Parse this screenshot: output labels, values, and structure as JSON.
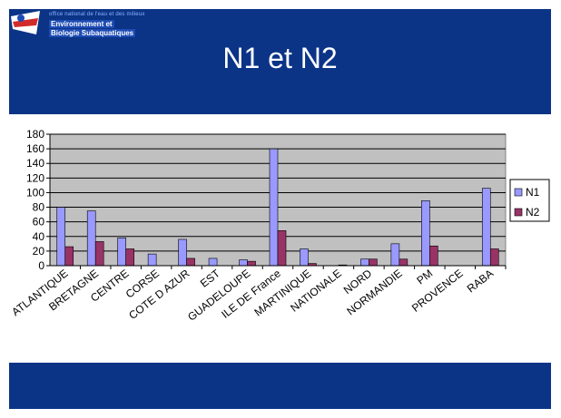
{
  "logo": {
    "line1": "office national de l'eau et des milieux",
    "line2": "Environnement et",
    "line3": "Biologie Subaquatiques"
  },
  "slide": {
    "title": "N1 et N2"
  },
  "colors": {
    "frame": "#0b3487",
    "plot_bg": "#c0c0c0",
    "n1": "#9999ff",
    "n2": "#993366"
  },
  "chart_data": {
    "type": "bar",
    "title": "",
    "xlabel": "",
    "ylabel": "",
    "categories": [
      "ATLANTIQUE",
      "BRETAGNE",
      "CENTRE",
      "CORSE",
      "COTE D AZUR",
      "EST",
      "GUADELOUPE",
      "ILE DE France",
      "MARTINIQUE",
      "NATIONALE",
      "NORD",
      "NORMANDIE",
      "PM",
      "PROVENCE",
      "RABA"
    ],
    "series": [
      {
        "name": "N1",
        "color": "#9999ff",
        "values": [
          80,
          75,
          38,
          16,
          36,
          10,
          8,
          160,
          23,
          0,
          9,
          30,
          89,
          0,
          106
        ]
      },
      {
        "name": "N2",
        "color": "#993366",
        "values": [
          26,
          33,
          23,
          0,
          10,
          0,
          6,
          48,
          3,
          1,
          9,
          9,
          27,
          0,
          23
        ]
      }
    ],
    "ylim": [
      0,
      180
    ],
    "yticks": [
      0,
      20,
      40,
      60,
      80,
      100,
      120,
      140,
      160,
      180
    ],
    "grid": true,
    "legend_position": "right"
  }
}
